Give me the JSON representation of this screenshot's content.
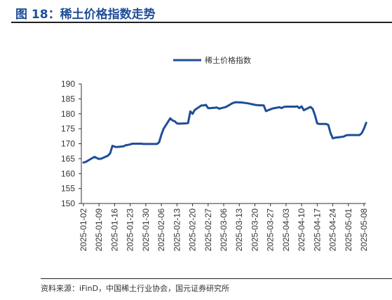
{
  "figure_title": "图 18：稀土价格指数走势",
  "source": "资料来源：iFinD，中国稀土行业协会，国元证券研究所",
  "chart_data": {
    "type": "line",
    "title": "",
    "xlabel": "",
    "ylabel": "",
    "ylim": [
      150,
      190
    ],
    "yticks": [
      150,
      155,
      160,
      165,
      170,
      175,
      180,
      185,
      190
    ],
    "xticks": [
      "2025-01-02",
      "2025-01-09",
      "2025-01-16",
      "2025-01-23",
      "2025-01-30",
      "2025-02-06",
      "2025-02-13",
      "2025-02-20",
      "2025-02-27",
      "2025-03-06",
      "2025-03-13",
      "2025-03-20",
      "2025-03-27",
      "2025-04-03",
      "2025-04-10",
      "2025-04-17",
      "2025-04-24",
      "2025-05-01",
      "2025-05-08"
    ],
    "legend_position": "top-center",
    "grid": false,
    "series": [
      {
        "name": "稀土价格指数",
        "color": "#1f4e96",
        "points": [
          [
            "2025-01-02",
            163.7
          ],
          [
            "2025-01-03",
            163.9
          ],
          [
            "2025-01-06",
            165.2
          ],
          [
            "2025-01-07",
            165.6
          ],
          [
            "2025-01-08",
            165.2
          ],
          [
            "2025-01-09",
            164.9
          ],
          [
            "2025-01-10",
            165.0
          ],
          [
            "2025-01-13",
            166.0
          ],
          [
            "2025-01-14",
            166.8
          ],
          [
            "2025-01-15",
            169.3
          ],
          [
            "2025-01-16",
            169.0
          ],
          [
            "2025-01-17",
            168.9
          ],
          [
            "2025-01-20",
            169.1
          ],
          [
            "2025-01-21",
            169.5
          ],
          [
            "2025-01-22",
            169.6
          ],
          [
            "2025-01-23",
            169.8
          ],
          [
            "2025-01-24",
            170.0
          ],
          [
            "2025-01-27",
            170.0
          ],
          [
            "2025-01-28",
            170.0
          ],
          [
            "2025-01-29",
            169.9
          ],
          [
            "2025-01-30",
            169.9
          ],
          [
            "2025-01-31",
            169.9
          ],
          [
            "2025-02-03",
            169.9
          ],
          [
            "2025-02-04",
            169.9
          ],
          [
            "2025-02-05",
            170.5
          ],
          [
            "2025-02-06",
            173.0
          ],
          [
            "2025-02-07",
            175.0
          ],
          [
            "2025-02-10",
            178.5
          ],
          [
            "2025-02-11",
            177.8
          ],
          [
            "2025-02-12",
            177.5
          ],
          [
            "2025-02-13",
            176.8
          ],
          [
            "2025-02-14",
            176.7
          ],
          [
            "2025-02-17",
            176.8
          ],
          [
            "2025-02-18",
            176.9
          ],
          [
            "2025-02-19",
            180.8
          ],
          [
            "2025-02-20",
            180.0
          ],
          [
            "2025-02-21",
            181.3
          ],
          [
            "2025-02-24",
            182.8
          ],
          [
            "2025-02-25",
            182.8
          ],
          [
            "2025-02-26",
            183.0
          ],
          [
            "2025-02-27",
            181.9
          ],
          [
            "2025-02-28",
            181.9
          ],
          [
            "2025-03-03",
            182.1
          ],
          [
            "2025-03-04",
            181.7
          ],
          [
            "2025-03-05",
            181.9
          ],
          [
            "2025-03-06",
            182.1
          ],
          [
            "2025-03-07",
            182.3
          ],
          [
            "2025-03-10",
            183.6
          ],
          [
            "2025-03-11",
            183.8
          ],
          [
            "2025-03-12",
            183.9
          ],
          [
            "2025-03-13",
            183.8
          ],
          [
            "2025-03-14",
            183.8
          ],
          [
            "2025-03-17",
            183.5
          ],
          [
            "2025-03-18",
            183.3
          ],
          [
            "2025-03-19",
            183.2
          ],
          [
            "2025-03-20",
            183.0
          ],
          [
            "2025-03-21",
            182.9
          ],
          [
            "2025-03-24",
            182.8
          ],
          [
            "2025-03-25",
            180.9
          ],
          [
            "2025-03-26",
            181.2
          ],
          [
            "2025-03-27",
            181.5
          ],
          [
            "2025-03-28",
            181.8
          ],
          [
            "2025-03-31",
            182.2
          ],
          [
            "2025-04-01",
            181.9
          ],
          [
            "2025-04-02",
            182.3
          ],
          [
            "2025-04-03",
            182.4
          ],
          [
            "2025-04-04",
            182.4
          ],
          [
            "2025-04-07",
            182.4
          ],
          [
            "2025-04-08",
            182.5
          ],
          [
            "2025-04-09",
            181.9
          ],
          [
            "2025-04-10",
            182.5
          ],
          [
            "2025-04-11",
            181.2
          ],
          [
            "2025-04-14",
            182.3
          ],
          [
            "2025-04-15",
            181.6
          ],
          [
            "2025-04-16",
            179.5
          ],
          [
            "2025-04-17",
            176.8
          ],
          [
            "2025-04-18",
            176.6
          ],
          [
            "2025-04-21",
            176.6
          ],
          [
            "2025-04-22",
            176.3
          ],
          [
            "2025-04-23",
            173.5
          ],
          [
            "2025-04-24",
            171.8
          ],
          [
            "2025-04-25",
            172.0
          ],
          [
            "2025-04-28",
            172.3
          ],
          [
            "2025-04-29",
            172.4
          ],
          [
            "2025-04-30",
            172.8
          ],
          [
            "2025-05-01",
            172.9
          ],
          [
            "2025-05-02",
            172.9
          ],
          [
            "2025-05-05",
            172.9
          ],
          [
            "2025-05-06",
            172.9
          ],
          [
            "2025-05-07",
            173.5
          ],
          [
            "2025-05-08",
            175.0
          ],
          [
            "2025-05-09",
            177.0
          ]
        ]
      }
    ]
  }
}
